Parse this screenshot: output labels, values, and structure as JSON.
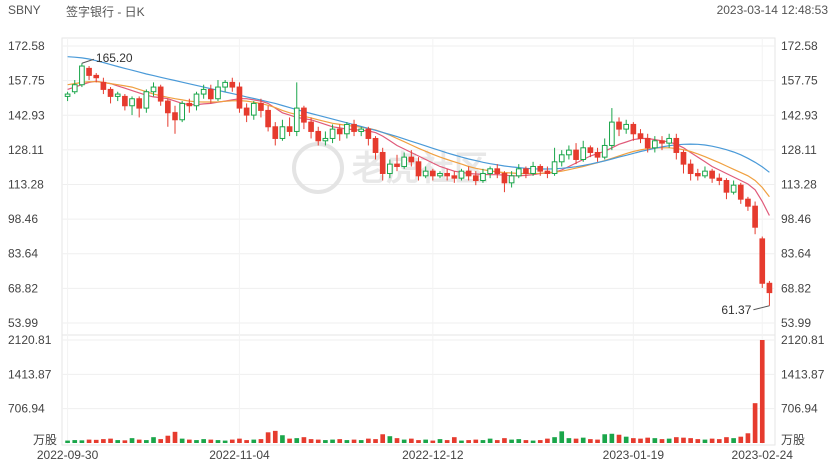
{
  "header": {
    "symbol": "SBNY",
    "name": "签字银行 - 日K",
    "datetime": "2023-03-14 12:48:53"
  },
  "watermark": "老虎社区",
  "chart_data": [
    {
      "type": "candlestick",
      "title": "",
      "y_ticks": [
        "172.58",
        "157.75",
        "142.93",
        "128.11",
        "113.28",
        "98.46",
        "83.64",
        "68.82",
        "53.99"
      ],
      "ylim": [
        53.99,
        172.58
      ],
      "x_ticks": [
        "2022-09-30",
        "2022-11-04",
        "2022-12-12",
        "2023-01-19",
        "2023-02-24"
      ],
      "annotations": {
        "high": "165.20",
        "low": "61.37"
      },
      "up_color": "#1aa64a",
      "down_color": "#e63b2e",
      "moving_average_colors": [
        "#e05a7a",
        "#f0a040",
        "#4a9ad8"
      ],
      "candles": [
        [
          151,
          152,
          149,
          153
        ],
        [
          153,
          156,
          152,
          158
        ],
        [
          156,
          164,
          155,
          165.2
        ],
        [
          163,
          160,
          158,
          164
        ],
        [
          160,
          159,
          157,
          161
        ],
        [
          157,
          154,
          152,
          159
        ],
        [
          154,
          151,
          148,
          155
        ],
        [
          151,
          152,
          149,
          153
        ],
        [
          151,
          147,
          145,
          152
        ],
        [
          147,
          150,
          143,
          151
        ],
        [
          150,
          146,
          142,
          151
        ],
        [
          146,
          153,
          144,
          154
        ],
        [
          153,
          155,
          151,
          157
        ],
        [
          155,
          149,
          147,
          156
        ],
        [
          149,
          144,
          138,
          150
        ],
        [
          144,
          141,
          135,
          147
        ],
        [
          141,
          148,
          140,
          149
        ],
        [
          148,
          147,
          144,
          150
        ],
        [
          147,
          152,
          145,
          153
        ],
        [
          152,
          154,
          150,
          156
        ],
        [
          154,
          150,
          148,
          156
        ],
        [
          150,
          155,
          149,
          158
        ],
        [
          155,
          157,
          153,
          158
        ],
        [
          157,
          155,
          153,
          159
        ],
        [
          155,
          146,
          144,
          157
        ],
        [
          146,
          143,
          140,
          148
        ],
        [
          143,
          148,
          141,
          149
        ],
        [
          148,
          145,
          142,
          150
        ],
        [
          145,
          138,
          136,
          147
        ],
        [
          138,
          133,
          130,
          140
        ],
        [
          133,
          138,
          132,
          141
        ],
        [
          138,
          136,
          134,
          142
        ],
        [
          136,
          146,
          134,
          157
        ],
        [
          146,
          140,
          137,
          147
        ],
        [
          140,
          136,
          133,
          142
        ],
        [
          136,
          132,
          130,
          138
        ],
        [
          132,
          133,
          130,
          136
        ],
        [
          133,
          137,
          131,
          139
        ],
        [
          137,
          135,
          132,
          139
        ],
        [
          135,
          139,
          133,
          140
        ],
        [
          139,
          136,
          134,
          141
        ],
        [
          136,
          137,
          134,
          138
        ],
        [
          137,
          133,
          130,
          138
        ],
        [
          133,
          127,
          124,
          134
        ],
        [
          127,
          118,
          115,
          129
        ],
        [
          118,
          122,
          116,
          124
        ],
        [
          122,
          121,
          119,
          126
        ],
        [
          121,
          125,
          120,
          127
        ],
        [
          125,
          123,
          121,
          128
        ],
        [
          123,
          117,
          115,
          125
        ],
        [
          117,
          119,
          116,
          121
        ],
        [
          119,
          117,
          115,
          120
        ],
        [
          117,
          118,
          116,
          119
        ],
        [
          118,
          117,
          115,
          120
        ],
        [
          117,
          116,
          114,
          119
        ],
        [
          116,
          119,
          115,
          120
        ],
        [
          119,
          117,
          115,
          121
        ],
        [
          117,
          115,
          113,
          119
        ],
        [
          115,
          118,
          114,
          120
        ],
        [
          118,
          120,
          116,
          121
        ],
        [
          120,
          118,
          116,
          122
        ],
        [
          118,
          114,
          110,
          119
        ],
        [
          114,
          117,
          112,
          119
        ],
        [
          117,
          120,
          116,
          122
        ],
        [
          120,
          118,
          116,
          121
        ],
        [
          118,
          121,
          117,
          123
        ],
        [
          121,
          119,
          117,
          122
        ],
        [
          119,
          118,
          116,
          121
        ],
        [
          118,
          123,
          117,
          129
        ],
        [
          123,
          126,
          121,
          128
        ],
        [
          126,
          128,
          124,
          130
        ],
        [
          128,
          124,
          122,
          131
        ],
        [
          124,
          129,
          123,
          132
        ],
        [
          129,
          127,
          125,
          130
        ],
        [
          127,
          125,
          123,
          129
        ],
        [
          125,
          130,
          124,
          133
        ],
        [
          130,
          140,
          128,
          146
        ],
        [
          140,
          137,
          134,
          142
        ],
        [
          137,
          139,
          135,
          141
        ],
        [
          139,
          135,
          132,
          140
        ],
        [
          135,
          133,
          131,
          137
        ],
        [
          133,
          129,
          127,
          135
        ],
        [
          129,
          132,
          127,
          134
        ],
        [
          132,
          131,
          128,
          134
        ],
        [
          131,
          133,
          129,
          135
        ],
        [
          133,
          127,
          124,
          135
        ],
        [
          127,
          122,
          118,
          128
        ],
        [
          122,
          118,
          115,
          124
        ],
        [
          118,
          117,
          115,
          120
        ],
        [
          117,
          119,
          116,
          121
        ],
        [
          119,
          116,
          114,
          120
        ],
        [
          116,
          115,
          113,
          118
        ],
        [
          115,
          110,
          107,
          116
        ],
        [
          110,
          113,
          109,
          115
        ],
        [
          113,
          107,
          105,
          114
        ],
        [
          107,
          104,
          102,
          108
        ],
        [
          104,
          95,
          92,
          106
        ],
        [
          90,
          71,
          69,
          91
        ],
        [
          71,
          67,
          61.37,
          72
        ]
      ],
      "ma_values": [
        [
          154,
          155,
          156,
          157,
          157.5,
          157,
          156.5,
          155.5,
          154.5,
          153.5,
          152.5,
          151.5,
          150.8,
          150.5,
          150,
          149,
          148,
          147.5,
          147.5,
          147.8,
          148,
          148.5,
          149,
          149.5,
          150,
          150,
          149.5,
          149,
          148,
          146,
          144,
          143,
          142,
          141.5,
          141,
          140,
          139,
          138,
          137.5,
          137,
          136.8,
          136.5,
          136.2,
          135.5,
          134,
          132,
          130,
          128.5,
          127,
          125.5,
          124,
          122.5,
          121,
          120,
          119,
          118.5,
          118,
          117.8,
          117.6,
          117.5,
          117.5,
          117.3,
          117,
          117,
          117.2,
          117.5,
          118,
          118.2,
          118.5,
          119.5,
          121,
          122.5,
          124,
          125.5,
          126.5,
          127.5,
          129,
          130.5,
          131.5,
          132.5,
          133,
          133,
          132.5,
          132,
          131.5,
          130.5,
          129,
          127,
          125,
          123,
          121,
          119.5,
          118,
          116.5,
          115,
          113.5,
          111,
          106,
          100
        ],
        [
          156,
          156.5,
          157,
          157.3,
          157.3,
          157,
          156.5,
          156,
          155.5,
          155,
          154,
          153,
          152,
          151.3,
          150.6,
          150,
          149.5,
          149,
          148.7,
          148.6,
          148.6,
          148.7,
          148.9,
          149.1,
          149.2,
          149,
          148.5,
          148,
          147.2,
          146.2,
          145,
          144,
          143.2,
          142.5,
          141.8,
          141,
          140.2,
          139.5,
          139,
          138.6,
          138.2,
          137.8,
          137.3,
          136.6,
          135.6,
          134.4,
          133,
          131.6,
          130.2,
          128.8,
          127.5,
          126.2,
          125,
          124,
          123,
          122,
          121,
          120.2,
          119.6,
          119.1,
          118.7,
          118.4,
          118.2,
          118,
          118,
          118,
          118.1,
          118.3,
          118.6,
          119,
          119.6,
          120.3,
          121,
          121.8,
          122.6,
          123.5,
          124.5,
          125.5,
          126.5,
          127.4,
          128.1,
          128.6,
          128.9,
          129,
          129,
          128.7,
          128.2,
          127.4,
          126.4,
          125.2,
          123.9,
          122.6,
          121.2,
          119.8,
          118.4,
          117,
          115,
          112,
          108
        ],
        [
          168,
          167.8,
          167.5,
          167,
          166.3,
          165.5,
          164.6,
          163.8,
          163,
          162.2,
          161.4,
          160.6,
          159.9,
          159.2,
          158.5,
          157.8,
          157.1,
          156.4,
          155.7,
          155,
          154.3,
          153.6,
          152.9,
          152.2,
          151.5,
          150.8,
          150.1,
          149.4,
          148.7,
          148,
          147.1,
          146.2,
          145.3,
          144.5,
          143.7,
          142.9,
          142.1,
          141.3,
          140.5,
          139.7,
          138.9,
          138.1,
          137.3,
          136.5,
          135.6,
          134.7,
          133.8,
          132.8,
          131.8,
          130.8,
          129.8,
          128.8,
          127.8,
          126.8,
          125.9,
          125,
          124.2,
          123.5,
          122.8,
          122.2,
          121.7,
          121.2,
          120.8,
          120.5,
          120.2,
          120,
          119.9,
          119.9,
          120,
          120.2,
          120.5,
          120.9,
          121.4,
          122,
          122.7,
          123.4,
          124.2,
          125,
          125.8,
          126.6,
          127.4,
          128.1,
          128.8,
          129.4,
          129.9,
          130.3,
          130.5,
          130.6,
          130.5,
          130.2,
          129.7,
          129,
          128.2,
          127.2,
          126,
          124.5,
          122.8,
          120.8,
          118.5
        ]
      ]
    },
    {
      "type": "bar",
      "title": "",
      "y_ticks": [
        "2120.81",
        "1413.87",
        "706.94"
      ],
      "ylim": [
        0,
        2120.81
      ],
      "unit": "万股",
      "values": [
        50,
        60,
        55,
        70,
        65,
        80,
        90,
        60,
        55,
        100,
        70,
        60,
        120,
        80,
        150,
        230,
        90,
        70,
        60,
        80,
        70,
        60,
        50,
        70,
        90,
        60,
        70,
        80,
        220,
        250,
        160,
        90,
        100,
        120,
        80,
        70,
        60,
        70,
        80,
        60,
        70,
        60,
        90,
        80,
        180,
        140,
        100,
        70,
        90,
        60,
        70,
        50,
        80,
        60,
        120,
        50,
        60,
        70,
        60,
        90,
        60,
        100,
        70,
        80,
        60,
        50,
        60,
        90,
        120,
        240,
        100,
        90,
        110,
        80,
        70,
        180,
        190,
        170,
        130,
        100,
        90,
        110,
        100,
        80,
        90,
        120,
        110,
        100,
        80,
        70,
        90,
        80,
        120,
        100,
        130,
        200,
        820,
        2120.81,
        0
      ]
    }
  ]
}
